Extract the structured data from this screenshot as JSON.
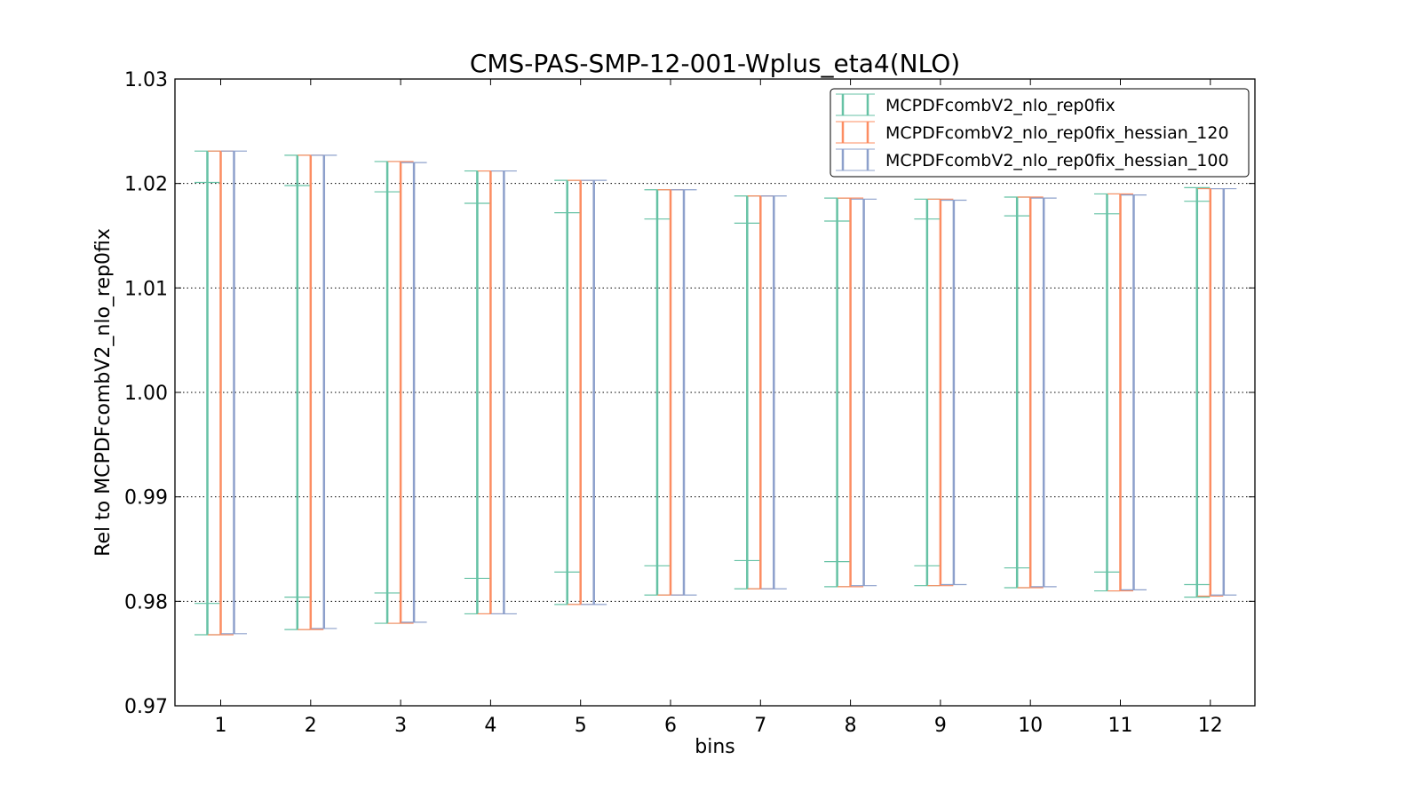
{
  "chart_data": {
    "type": "errorbar",
    "title": "CMS-PAS-SMP-12-001-Wplus_eta4(NLO)",
    "xlabel": "bins",
    "ylabel": "Rel to MCPDFcombV2_nlo_rep0fix",
    "ylim": [
      0.97,
      1.03
    ],
    "yticks": [
      "0.97",
      "0.98",
      "0.99",
      "1.00",
      "1.01",
      "1.02",
      "1.03"
    ],
    "categories": [
      "1",
      "2",
      "3",
      "4",
      "5",
      "6",
      "7",
      "8",
      "9",
      "10",
      "11",
      "12"
    ],
    "grid": "horizontal-dotted",
    "legend_position": "top-right",
    "series": [
      {
        "name": "MCPDFcombV2_nlo_rep0fix",
        "color": "#66c2a5",
        "upper": [
          1.0231,
          1.0227,
          1.0221,
          1.0212,
          1.0203,
          1.0194,
          1.0188,
          1.0186,
          1.0185,
          1.0187,
          1.019,
          1.0196
        ],
        "lower": [
          0.9768,
          0.9773,
          0.9779,
          0.9788,
          0.9797,
          0.9806,
          0.9812,
          0.9814,
          0.9815,
          0.9813,
          0.981,
          0.9804
        ],
        "inner_upper": [
          1.0201,
          1.0198,
          1.0192,
          1.0181,
          1.0172,
          1.0166,
          1.0162,
          1.0164,
          1.0166,
          1.0169,
          1.0171,
          1.0183
        ],
        "inner_lower": [
          0.9798,
          0.9804,
          0.9808,
          0.9822,
          0.9828,
          0.9834,
          0.9839,
          0.9838,
          0.9834,
          0.9832,
          0.9828,
          0.9816
        ]
      },
      {
        "name": "MCPDFcombV2_nlo_rep0fix_hessian_120",
        "color": "#fc8d62",
        "upper": [
          1.0231,
          1.0227,
          1.0221,
          1.0212,
          1.0203,
          1.0194,
          1.0188,
          1.0186,
          1.0185,
          1.0187,
          1.019,
          1.0195
        ],
        "lower": [
          0.9768,
          0.9773,
          0.9779,
          0.9788,
          0.9797,
          0.9806,
          0.9812,
          0.9814,
          0.9815,
          0.9813,
          0.981,
          0.9805
        ]
      },
      {
        "name": "MCPDFcombV2_nlo_rep0fix_hessian_100",
        "color": "#8da0cb",
        "upper": [
          1.0231,
          1.0227,
          1.022,
          1.0212,
          1.0203,
          1.0194,
          1.0188,
          1.0185,
          1.0184,
          1.0186,
          1.0189,
          1.0195
        ],
        "lower": [
          0.9769,
          0.9774,
          0.978,
          0.9788,
          0.9797,
          0.9806,
          0.9812,
          0.9815,
          0.9816,
          0.9814,
          0.9811,
          0.9806
        ]
      }
    ]
  }
}
